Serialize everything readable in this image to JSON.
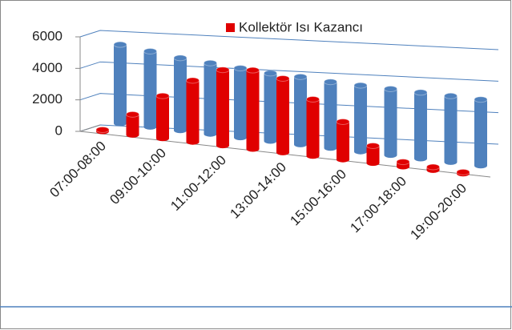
{
  "chart_data": {
    "type": "bar3d",
    "categories": [
      "07:00-08:00",
      null,
      "09:00-10:00",
      null,
      "11:00-12:00",
      null,
      "13:00-14:00",
      null,
      "15:00-16:00",
      null,
      "17:00-18:00",
      null,
      "19:00-20:00"
    ],
    "series": [
      {
        "color": "#4f81bd",
        "values": [
          5000,
          4800,
          4600,
          4500,
          4400,
          4300,
          4300,
          4200,
          4200,
          4200,
          4200,
          4200,
          4200
        ]
      },
      {
        "name": "Kollektör Isı Kazancı",
        "color": "#e00000",
        "values": [
          100,
          1300,
          2700,
          3900,
          4800,
          5000,
          4700,
          3600,
          2400,
          1100,
          300,
          200,
          100
        ]
      }
    ],
    "ylim": [
      0,
      6000
    ],
    "yticks": [
      0,
      2000,
      4000,
      6000
    ],
    "grid": true
  }
}
